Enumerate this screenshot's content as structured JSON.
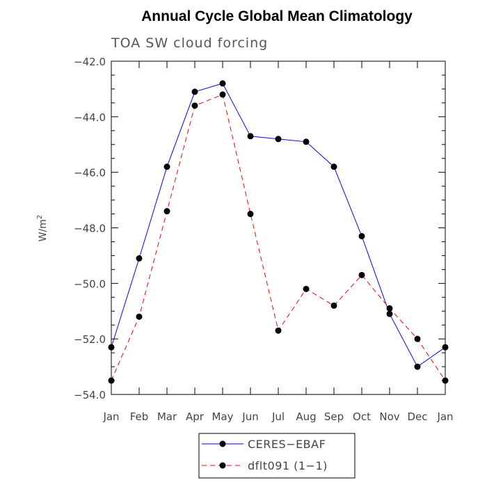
{
  "chart_data": {
    "type": "line",
    "title": "Annual Cycle Global Mean Climatology",
    "subtitle": "TOA SW cloud forcing",
    "ylabel": "W/m",
    "ylabel_sup": "2",
    "xlabel": "",
    "categories": [
      "Jan",
      "Feb",
      "Mar",
      "Apr",
      "May",
      "Jun",
      "Jul",
      "Aug",
      "Sep",
      "Oct",
      "Nov",
      "Dec",
      "Jan"
    ],
    "ylim": [
      -54.0,
      -42.0
    ],
    "yticks": [
      -54.0,
      -52.0,
      -50.0,
      -48.0,
      -46.0,
      -44.0,
      -42.0
    ],
    "ytick_labels": [
      "−54.0",
      "−52.0",
      "−50.0",
      "−48.0",
      "−46.0",
      "−44.0",
      "−42.0"
    ],
    "series": [
      {
        "name": "CERES−EBAF",
        "color": "#0000ff",
        "dash": "solid",
        "values": [
          -52.3,
          -49.1,
          -45.8,
          -43.1,
          -42.8,
          -44.7,
          -44.8,
          -44.9,
          -45.8,
          -48.3,
          -51.1,
          -53.0,
          -52.3
        ]
      },
      {
        "name": "dflt091 (1−1)",
        "color": "#ff0000",
        "dash": "dashed",
        "values": [
          -53.5,
          -51.2,
          -47.4,
          -43.6,
          -43.2,
          -47.5,
          -51.7,
          -50.2,
          -50.8,
          -49.7,
          -50.9,
          -52.0,
          -53.5
        ]
      }
    ]
  }
}
